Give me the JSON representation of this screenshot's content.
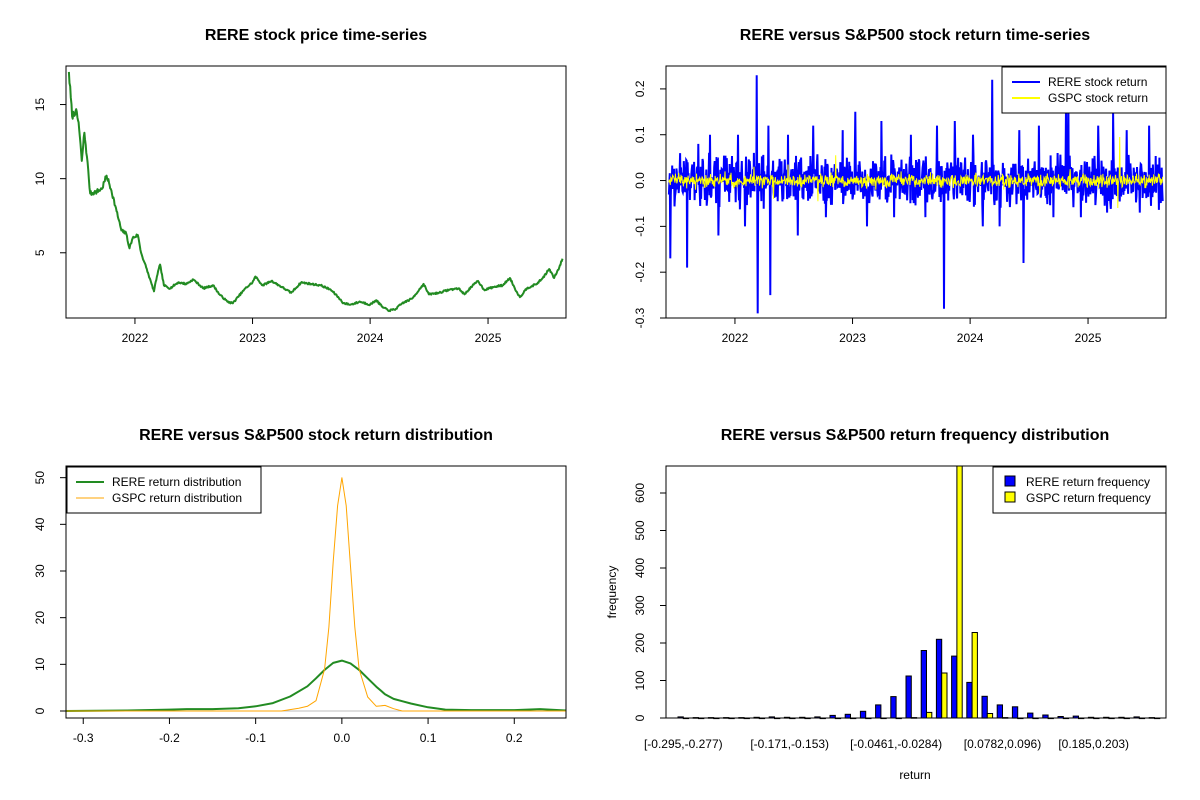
{
  "chart_data": [
    {
      "id": "price",
      "type": "line",
      "title": "RERE stock price time-series",
      "xlabel": "",
      "ylabel": "",
      "x_ticks": [
        "2022",
        "2023",
        "2024",
        "2025"
      ],
      "y_ticks": [
        5,
        10,
        15
      ],
      "x_range": [
        "2021-06-01",
        "2025-08-31"
      ],
      "ylim": [
        0.6,
        17.6
      ],
      "series": [
        {
          "color": "#228B22",
          "points": [
            [
              "2021-06-10",
              17.2
            ],
            [
              "2021-06-20",
              14.2
            ],
            [
              "2021-07-01",
              14.6
            ],
            [
              "2021-07-10",
              13.8
            ],
            [
              "2021-07-20",
              11.2
            ],
            [
              "2021-07-28",
              13.1
            ],
            [
              "2021-08-05",
              11.5
            ],
            [
              "2021-08-15",
              9.0
            ],
            [
              "2021-09-01",
              9.1
            ],
            [
              "2021-09-20",
              9.3
            ],
            [
              "2021-10-05",
              10.2
            ],
            [
              "2021-10-20",
              9.2
            ],
            [
              "2021-11-05",
              7.8
            ],
            [
              "2021-11-20",
              6.5
            ],
            [
              "2021-12-05",
              6.3
            ],
            [
              "2021-12-15",
              5.3
            ],
            [
              "2021-12-25",
              6.0
            ],
            [
              "2022-01-10",
              6.2
            ],
            [
              "2022-01-20",
              5.0
            ],
            [
              "2022-02-05",
              4.0
            ],
            [
              "2022-02-20",
              3.0
            ],
            [
              "2022-03-01",
              2.4
            ],
            [
              "2022-03-10",
              3.4
            ],
            [
              "2022-03-20",
              4.2
            ],
            [
              "2022-04-01",
              2.8
            ],
            [
              "2022-04-20",
              2.6
            ],
            [
              "2022-05-15",
              3.0
            ],
            [
              "2022-06-10",
              2.9
            ],
            [
              "2022-07-01",
              3.2
            ],
            [
              "2022-08-01",
              2.6
            ],
            [
              "2022-09-01",
              2.8
            ],
            [
              "2022-09-20",
              2.2
            ],
            [
              "2022-10-15",
              1.7
            ],
            [
              "2022-11-01",
              1.6
            ],
            [
              "2022-11-20",
              2.1
            ],
            [
              "2022-12-10",
              2.6
            ],
            [
              "2023-01-01",
              3.0
            ],
            [
              "2023-01-10",
              3.4
            ],
            [
              "2023-02-01",
              2.8
            ],
            [
              "2023-03-01",
              3.1
            ],
            [
              "2023-04-01",
              2.7
            ],
            [
              "2023-05-01",
              2.3
            ],
            [
              "2023-06-01",
              3.0
            ],
            [
              "2023-07-01",
              2.9
            ],
            [
              "2023-08-01",
              2.8
            ],
            [
              "2023-09-01",
              2.5
            ],
            [
              "2023-09-20",
              2.1
            ],
            [
              "2023-10-10",
              1.6
            ],
            [
              "2023-11-01",
              1.5
            ],
            [
              "2023-12-01",
              1.7
            ],
            [
              "2024-01-01",
              1.5
            ],
            [
              "2024-01-20",
              1.8
            ],
            [
              "2024-02-10",
              1.3
            ],
            [
              "2024-03-01",
              1.1
            ],
            [
              "2024-03-20",
              1.2
            ],
            [
              "2024-04-10",
              1.6
            ],
            [
              "2024-05-10",
              1.9
            ],
            [
              "2024-06-01",
              2.5
            ],
            [
              "2024-06-15",
              2.9
            ],
            [
              "2024-07-01",
              2.2
            ],
            [
              "2024-08-01",
              2.3
            ],
            [
              "2024-09-01",
              2.5
            ],
            [
              "2024-10-01",
              2.6
            ],
            [
              "2024-10-20",
              2.2
            ],
            [
              "2024-11-10",
              2.7
            ],
            [
              "2024-12-01",
              3.1
            ],
            [
              "2024-12-20",
              2.5
            ],
            [
              "2025-01-20",
              2.7
            ],
            [
              "2025-02-15",
              2.8
            ],
            [
              "2025-03-10",
              3.3
            ],
            [
              "2025-03-25",
              2.6
            ],
            [
              "2025-04-10",
              2.0
            ],
            [
              "2025-05-01",
              2.6
            ],
            [
              "2025-06-01",
              2.9
            ],
            [
              "2025-06-20",
              3.3
            ],
            [
              "2025-07-10",
              3.9
            ],
            [
              "2025-07-25",
              3.3
            ],
            [
              "2025-08-10",
              4.0
            ],
            [
              "2025-08-20",
              4.6
            ]
          ]
        }
      ]
    },
    {
      "id": "returns",
      "type": "line",
      "title": "RERE versus S&P500 stock return time-series",
      "xlabel": "",
      "ylabel": "",
      "x_ticks": [
        "2022",
        "2023",
        "2024",
        "2025"
      ],
      "y_ticks": [
        -0.3,
        -0.2,
        -0.1,
        0.0,
        0.1,
        0.2
      ],
      "x_range": [
        "2021-06-01",
        "2025-08-31"
      ],
      "ylim": [
        -0.3,
        0.25
      ],
      "legend_position": "top-right",
      "series": [
        {
          "name": "RERE stock return",
          "color": "#0000FF",
          "extremes": [
            [
              "2021-06-15",
              -0.17
            ],
            [
              "2021-07-15",
              0.06
            ],
            [
              "2021-08-05",
              -0.19
            ],
            [
              "2021-09-10",
              0.08
            ],
            [
              "2021-10-15",
              0.1
            ],
            [
              "2021-11-10",
              -0.12
            ],
            [
              "2022-01-10",
              0.1
            ],
            [
              "2022-02-01",
              -0.1
            ],
            [
              "2022-03-10",
              0.23
            ],
            [
              "2022-03-12",
              -0.29
            ],
            [
              "2022-04-15",
              0.12
            ],
            [
              "2022-04-20",
              -0.25
            ],
            [
              "2022-06-15",
              0.1
            ],
            [
              "2022-07-15",
              -0.12
            ],
            [
              "2022-09-01",
              0.12
            ],
            [
              "2022-10-10",
              -0.08
            ],
            [
              "2022-12-01",
              0.11
            ],
            [
              "2023-01-10",
              0.15
            ],
            [
              "2023-02-15",
              -0.1
            ],
            [
              "2023-04-01",
              0.13
            ],
            [
              "2023-05-10",
              -0.08
            ],
            [
              "2023-07-01",
              0.1
            ],
            [
              "2023-08-15",
              -0.08
            ],
            [
              "2023-09-20",
              0.12
            ],
            [
              "2023-10-12",
              -0.28
            ],
            [
              "2023-11-15",
              0.13
            ],
            [
              "2024-01-10",
              0.1
            ],
            [
              "2024-02-10",
              -0.1
            ],
            [
              "2024-03-10",
              0.22
            ],
            [
              "2024-04-01",
              -0.1
            ],
            [
              "2024-06-01",
              0.11
            ],
            [
              "2024-06-15",
              -0.18
            ],
            [
              "2024-08-01",
              0.12
            ],
            [
              "2024-09-15",
              -0.08
            ],
            [
              "2024-10-25",
              0.16
            ],
            [
              "2024-11-01",
              0.21
            ],
            [
              "2024-12-10",
              -0.08
            ],
            [
              "2025-02-01",
              0.12
            ],
            [
              "2025-03-01",
              -0.07
            ],
            [
              "2025-03-20",
              0.15
            ],
            [
              "2025-05-01",
              0.11
            ],
            [
              "2025-06-10",
              -0.07
            ],
            [
              "2025-07-10",
              0.12
            ],
            [
              "2025-08-10",
              0.05
            ]
          ]
        },
        {
          "name": "GSPC stock return",
          "color": "#FFFF00",
          "extremes": [
            [
              "2021-07-01",
              0.015
            ],
            [
              "2021-09-01",
              -0.02
            ],
            [
              "2021-12-01",
              0.02
            ],
            [
              "2022-03-01",
              0.03
            ],
            [
              "2022-05-01",
              -0.04
            ],
            [
              "2022-06-15",
              0.035
            ],
            [
              "2022-09-15",
              -0.045
            ],
            [
              "2022-11-10",
              0.055
            ],
            [
              "2023-03-15",
              -0.02
            ],
            [
              "2023-06-01",
              0.02
            ],
            [
              "2023-10-01",
              -0.015
            ],
            [
              "2024-04-15",
              -0.02
            ],
            [
              "2024-08-05",
              -0.03
            ],
            [
              "2024-11-06",
              0.025
            ],
            [
              "2025-04-04",
              -0.06
            ],
            [
              "2025-04-09",
              0.095
            ],
            [
              "2025-06-01",
              0.015
            ],
            [
              "2025-08-15",
              -0.01
            ]
          ]
        }
      ]
    },
    {
      "id": "density",
      "type": "line",
      "title": "RERE versus S&P500 stock return distribution",
      "xlabel": "",
      "ylabel": "",
      "x_ticks": [
        -0.3,
        -0.2,
        -0.1,
        0.0,
        0.1,
        0.2
      ],
      "y_ticks": [
        0,
        10,
        20,
        30,
        40,
        50
      ],
      "xlim": [
        -0.32,
        0.26
      ],
      "ylim": [
        -1.5,
        52.5
      ],
      "legend_position": "top-left",
      "series": [
        {
          "name": "RERE return distribution",
          "color": "#228B22",
          "x": [
            -0.32,
            -0.25,
            -0.2,
            -0.18,
            -0.15,
            -0.12,
            -0.1,
            -0.08,
            -0.06,
            -0.04,
            -0.03,
            -0.02,
            -0.01,
            0.0,
            0.01,
            0.02,
            0.03,
            0.04,
            0.05,
            0.06,
            0.07,
            0.08,
            0.1,
            0.12,
            0.15,
            0.2,
            0.23,
            0.26
          ],
          "y": [
            0.0,
            0.1,
            0.3,
            0.4,
            0.4,
            0.6,
            1.0,
            1.7,
            3.1,
            5.3,
            7.0,
            8.8,
            10.3,
            10.8,
            10.2,
            8.8,
            7.0,
            5.2,
            3.6,
            2.6,
            2.1,
            1.6,
            0.8,
            0.3,
            0.2,
            0.2,
            0.4,
            0.1
          ]
        },
        {
          "name": "GSPC return distribution",
          "color": "#FFA500",
          "x": [
            -0.32,
            -0.07,
            -0.06,
            -0.05,
            -0.04,
            -0.03,
            -0.02,
            -0.015,
            -0.01,
            -0.005,
            0.0,
            0.005,
            0.01,
            0.015,
            0.02,
            0.03,
            0.04,
            0.05,
            0.06,
            0.07,
            0.26
          ],
          "y": [
            0.0,
            0.0,
            0.3,
            0.6,
            1.0,
            2.2,
            9.0,
            18.0,
            32.0,
            44.0,
            50.0,
            44.0,
            31.0,
            18.0,
            9.0,
            3.0,
            1.0,
            1.2,
            0.5,
            0.0,
            0.0
          ]
        }
      ]
    },
    {
      "id": "freq",
      "type": "bar",
      "title": "RERE versus S&P500 return frequency distribution",
      "xlabel": "return",
      "ylabel": "frequency",
      "x_tick_labels": [
        "[-0.295,-0.277)",
        "[-0.171,-0.153)",
        "[-0.0461,-0.0284)",
        "[0.0782,0.096)",
        "[0.185,0.203)"
      ],
      "x_tick_bin_index": [
        0,
        7,
        14,
        21,
        27
      ],
      "y_ticks": [
        0,
        100,
        200,
        300,
        400,
        500,
        600
      ],
      "ylim": [
        0,
        672
      ],
      "legend_position": "top-right",
      "series": [
        {
          "name": "RERE return frequency",
          "color": "#0000FF",
          "values": [
            3,
            1,
            1,
            1,
            1,
            2,
            3,
            2,
            2,
            3,
            7,
            10,
            18,
            35,
            57,
            112,
            180,
            210,
            165,
            95,
            58,
            35,
            30,
            13,
            8,
            4,
            5,
            2,
            2,
            2,
            3,
            1
          ]
        },
        {
          "name": "GSPC return frequency",
          "color": "#FFFF00",
          "values": [
            0,
            0,
            0,
            0,
            0,
            0,
            0,
            0,
            0,
            0,
            0,
            0,
            0,
            0,
            0,
            1,
            15,
            120,
            672,
            228,
            12,
            1,
            0,
            0,
            0,
            0,
            0,
            0,
            0,
            0,
            0,
            0
          ]
        }
      ]
    }
  ]
}
